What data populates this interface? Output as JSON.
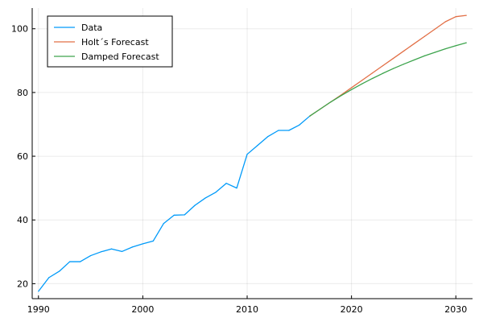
{
  "chart_data": {
    "type": "line",
    "title": "",
    "xlabel": "",
    "ylabel": "",
    "xlim": [
      1989.4,
      2031.6
    ],
    "ylim": [
      15.3,
      106.5
    ],
    "x_ticks": [
      1990,
      2000,
      2010,
      2020,
      2030
    ],
    "y_ticks": [
      20,
      40,
      60,
      80,
      100
    ],
    "grid": true,
    "legend_position": "top-left",
    "series": [
      {
        "name": "Data",
        "color": "#009af9",
        "points": [
          [
            1990,
            17.6
          ],
          [
            1991,
            21.9
          ],
          [
            1992,
            23.9
          ],
          [
            1993,
            26.9
          ],
          [
            1994,
            26.9
          ],
          [
            1995,
            28.8
          ],
          [
            1996,
            30.0
          ],
          [
            1997,
            30.9
          ],
          [
            1998,
            30.1
          ],
          [
            1999,
            31.5
          ],
          [
            2000,
            32.5
          ],
          [
            2001,
            33.4
          ],
          [
            2002,
            38.9
          ],
          [
            2003,
            41.5
          ],
          [
            2004,
            41.6
          ],
          [
            2005,
            44.6
          ],
          [
            2006,
            46.9
          ],
          [
            2007,
            48.7
          ],
          [
            2008,
            51.5
          ],
          [
            2009,
            50.0
          ],
          [
            2010,
            60.6
          ],
          [
            2011,
            63.4
          ],
          [
            2012,
            66.2
          ],
          [
            2013,
            68.1
          ],
          [
            2014,
            68.1
          ],
          [
            2015,
            69.8
          ],
          [
            2016,
            72.6
          ]
        ]
      },
      {
        "name": "Holt´s Forecast",
        "color": "#e26f46",
        "points": [
          [
            2016,
            72.6
          ],
          [
            2017,
            74.8
          ],
          [
            2018,
            77.0
          ],
          [
            2019,
            79.2
          ],
          [
            2020,
            81.5
          ],
          [
            2021,
            83.8
          ],
          [
            2022,
            86.1
          ],
          [
            2023,
            88.4
          ],
          [
            2024,
            90.7
          ],
          [
            2025,
            93.0
          ],
          [
            2026,
            95.3
          ],
          [
            2027,
            97.6
          ],
          [
            2028,
            99.9
          ],
          [
            2029,
            102.2
          ],
          [
            2030,
            103.8
          ],
          [
            2031,
            104.2
          ]
        ]
      },
      {
        "name": "Damped Forecast",
        "color": "#3da44d",
        "points": [
          [
            2016,
            72.6
          ],
          [
            2017,
            74.8
          ],
          [
            2018,
            77.0
          ],
          [
            2019,
            79.0
          ],
          [
            2020,
            80.9
          ],
          [
            2021,
            82.7
          ],
          [
            2022,
            84.4
          ],
          [
            2023,
            86.0
          ],
          [
            2024,
            87.5
          ],
          [
            2025,
            88.9
          ],
          [
            2026,
            90.2
          ],
          [
            2027,
            91.5
          ],
          [
            2028,
            92.6
          ],
          [
            2029,
            93.7
          ],
          [
            2030,
            94.7
          ],
          [
            2031,
            95.6
          ]
        ]
      }
    ]
  }
}
